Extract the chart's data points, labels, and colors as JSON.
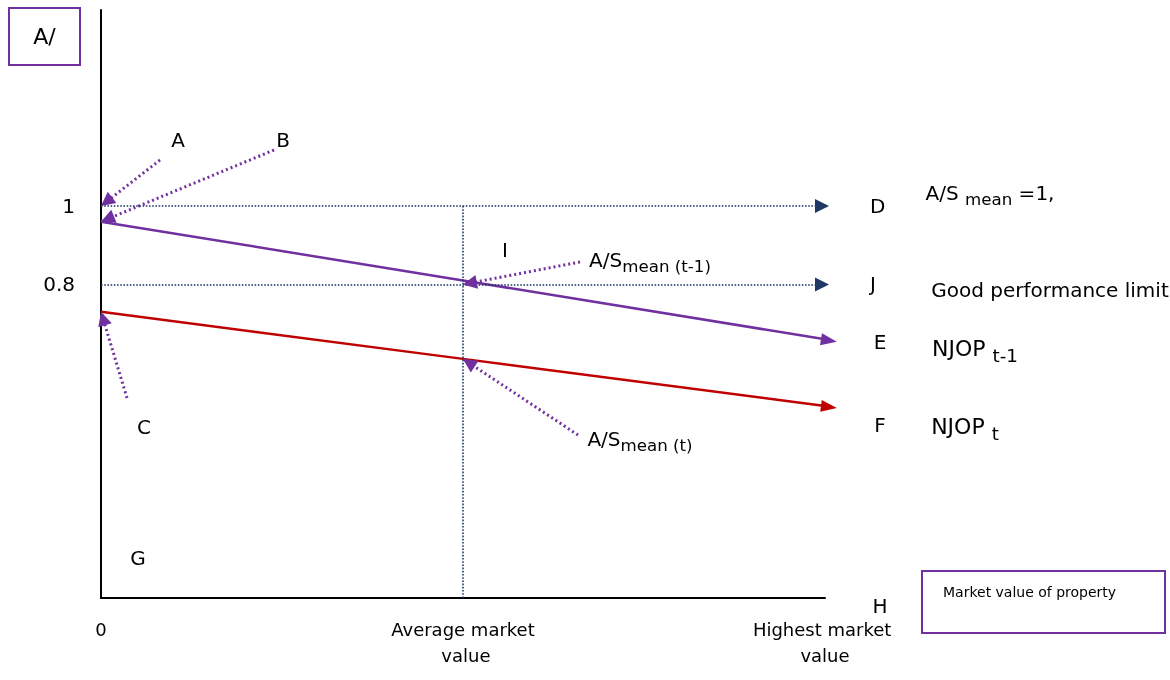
{
  "chart_data": {
    "type": "line",
    "xlabel": "Market value of property",
    "ylabel": "A/",
    "categories": [
      "0",
      "Average market value",
      "Highest market value"
    ],
    "series": [
      {
        "name": "NJOP $_{t-1}$",
        "color": "#7030a0",
        "values": [
          0.96,
          0.81,
          0.66
        ]
      },
      {
        "name": "NJOP $_{t}$",
        "color": "#c00000",
        "values": [
          0.73,
          0.61,
          0.49
        ]
      }
    ],
    "ylim": [
      0,
      1.5
    ],
    "yticks": [
      0.8,
      1
    ],
    "grid": false,
    "line_style": "solid",
    "ref_lines": [
      {
        "axis": "y",
        "value": 1,
        "label": "D",
        "color": "#1f3864",
        "line_style": "dotted"
      },
      {
        "axis": "y",
        "value": 0.8,
        "label": "J",
        "color": "#1f3864",
        "line_style": "dotted"
      },
      {
        "axis": "x",
        "value": "Average market value",
        "color": "#1f3864",
        "line_style": "dotted"
      }
    ],
    "annotations": [
      {
        "text": "A",
        "x": "0",
        "y": 1
      },
      {
        "text": "B",
        "x": "0",
        "y": 0.96
      },
      {
        "text": "C",
        "x": "0",
        "y": 0.73
      },
      "G",
      "I",
      "E",
      "F",
      "H",
      "A/S $_{mean}$ =1,",
      "Good performance limit",
      {
        "text": "A/S$_{mean (t-1)}$",
        "x": "Average market value",
        "y": 0.8
      },
      {
        "text": "A/S$_{mean (t)}$",
        "x": "Average market value",
        "y": 0.61
      }
    ]
  }
}
